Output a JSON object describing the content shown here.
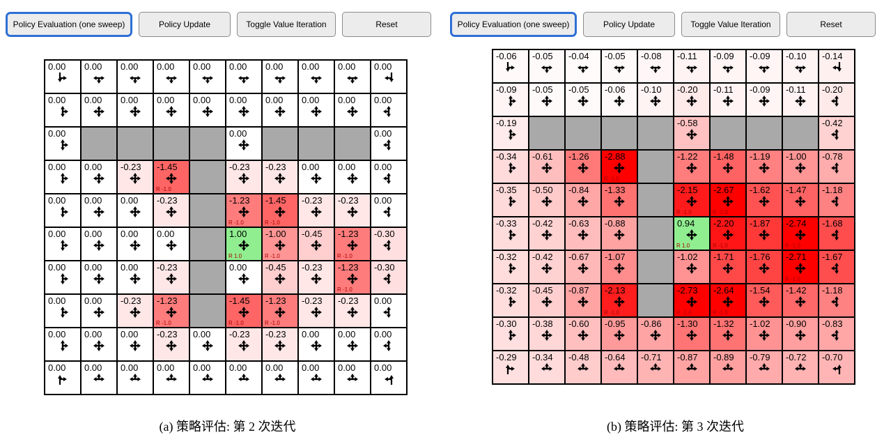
{
  "colors": {
    "accent_blue": "#2e6fd6",
    "button_bg": "#ececec",
    "button_border": "#8a8a8a",
    "cell_green": "#90ee90",
    "obstacle_gray": "#a9a9a9",
    "cell_max_red": "#ff0000",
    "reward_label_red": "#aa0000",
    "grid_border": "#000000"
  },
  "icons": {
    "policy-arrows-icon": "black directional arrows in each cell showing allowed policy moves (up/down/left/right; edge and corner cells omit blocked directions; corner cells drawn as elbow arrows)"
  },
  "panels": [
    {
      "id": "a",
      "toolbar": {
        "buttons": [
          {
            "label": "Policy Evaluation (one sweep)",
            "active": true
          },
          {
            "label": "Policy Update",
            "active": false
          },
          {
            "label": "Toggle Value Iteration",
            "active": false
          },
          {
            "label": "Reset",
            "active": false
          }
        ]
      },
      "caption": "(a) 策略评估: 第 2 次迭代",
      "grid": {
        "rows": 10,
        "cols": 10,
        "cells": [
          [
            {
              "v": "0.00"
            },
            {
              "v": "0.00"
            },
            {
              "v": "0.00"
            },
            {
              "v": "0.00"
            },
            {
              "v": "0.00"
            },
            {
              "v": "0.00"
            },
            {
              "v": "0.00"
            },
            {
              "v": "0.00"
            },
            {
              "v": "0.00"
            },
            {
              "v": "0.00"
            }
          ],
          [
            {
              "v": "0.00"
            },
            {
              "v": "0.00"
            },
            {
              "v": "0.00"
            },
            {
              "v": "0.00"
            },
            {
              "v": "0.00"
            },
            {
              "v": "0.00"
            },
            {
              "v": "0.00"
            },
            {
              "v": "0.00"
            },
            {
              "v": "0.00"
            },
            {
              "v": "0.00"
            }
          ],
          [
            {
              "v": "0.00"
            },
            null,
            null,
            null,
            null,
            {
              "v": "0.00"
            },
            null,
            null,
            null,
            {
              "v": "0.00"
            }
          ],
          [
            {
              "v": "0.00"
            },
            {
              "v": "0.00"
            },
            {
              "v": "-0.23"
            },
            {
              "v": "-1.45",
              "r": "R -1.0"
            },
            null,
            {
              "v": "-0.23"
            },
            {
              "v": "-0.23"
            },
            {
              "v": "0.00"
            },
            {
              "v": "0.00"
            },
            {
              "v": "0.00"
            }
          ],
          [
            {
              "v": "0.00"
            },
            {
              "v": "0.00"
            },
            {
              "v": "0.00"
            },
            {
              "v": "-0.23"
            },
            null,
            {
              "v": "-1.23",
              "r": "R -1.0"
            },
            {
              "v": "-1.45",
              "r": "R -1.0"
            },
            {
              "v": "-0.23"
            },
            {
              "v": "-0.23"
            },
            {
              "v": "0.00"
            }
          ],
          [
            {
              "v": "0.00"
            },
            {
              "v": "0.00"
            },
            {
              "v": "0.00"
            },
            {
              "v": "0.00"
            },
            null,
            {
              "v": "1.00",
              "r": "R 1.0"
            },
            {
              "v": "-1.00",
              "r": "R -1.0"
            },
            {
              "v": "-0.45"
            },
            {
              "v": "-1.23",
              "r": "R -1.0"
            },
            {
              "v": "-0.30"
            }
          ],
          [
            {
              "v": "0.00"
            },
            {
              "v": "0.00"
            },
            {
              "v": "0.00"
            },
            {
              "v": "-0.23"
            },
            null,
            {
              "v": "0.00"
            },
            {
              "v": "-0.45"
            },
            {
              "v": "-0.23"
            },
            {
              "v": "-1.23",
              "r": "R -1.0"
            },
            {
              "v": "-0.30"
            }
          ],
          [
            {
              "v": "0.00"
            },
            {
              "v": "0.00"
            },
            {
              "v": "-0.23"
            },
            {
              "v": "-1.23",
              "r": "R -1.0"
            },
            null,
            {
              "v": "-1.45",
              "r": "R -1.0"
            },
            {
              "v": "-1.23",
              "r": "R -1.0"
            },
            {
              "v": "-0.23"
            },
            {
              "v": "-0.23"
            },
            {
              "v": "0.00"
            }
          ],
          [
            {
              "v": "0.00"
            },
            {
              "v": "0.00"
            },
            {
              "v": "0.00"
            },
            {
              "v": "-0.23"
            },
            {
              "v": "0.00"
            },
            {
              "v": "-0.23"
            },
            {
              "v": "-0.23"
            },
            {
              "v": "0.00"
            },
            {
              "v": "0.00"
            },
            {
              "v": "0.00"
            }
          ],
          [
            {
              "v": "0.00"
            },
            {
              "v": "0.00"
            },
            {
              "v": "0.00"
            },
            {
              "v": "0.00"
            },
            {
              "v": "0.00"
            },
            {
              "v": "0.00"
            },
            {
              "v": "0.00"
            },
            {
              "v": "0.00"
            },
            {
              "v": "0.00"
            },
            {
              "v": "0.00"
            }
          ]
        ]
      }
    },
    {
      "id": "b",
      "toolbar": {
        "buttons": [
          {
            "label": "Policy Evaluation (one sweep)",
            "active": true
          },
          {
            "label": "Policy Update",
            "active": false
          },
          {
            "label": "Toggle Value Iteration",
            "active": false
          },
          {
            "label": "Reset",
            "active": false
          }
        ]
      },
      "caption": "(b) 策略评估: 第 3 次迭代",
      "grid": {
        "rows": 10,
        "cols": 10,
        "cells": [
          [
            {
              "v": "-0.06"
            },
            {
              "v": "-0.05"
            },
            {
              "v": "-0.04"
            },
            {
              "v": "-0.05"
            },
            {
              "v": "-0.08"
            },
            {
              "v": "-0.11"
            },
            {
              "v": "-0.09"
            },
            {
              "v": "-0.09"
            },
            {
              "v": "-0.10"
            },
            {
              "v": "-0.14"
            }
          ],
          [
            {
              "v": "-0.09"
            },
            {
              "v": "-0.05"
            },
            {
              "v": "-0.05"
            },
            {
              "v": "-0.06"
            },
            {
              "v": "-0.10"
            },
            {
              "v": "-0.20"
            },
            {
              "v": "-0.11"
            },
            {
              "v": "-0.09"
            },
            {
              "v": "-0.11"
            },
            {
              "v": "-0.20"
            }
          ],
          [
            {
              "v": "-0.19"
            },
            null,
            null,
            null,
            null,
            {
              "v": "-0.58"
            },
            null,
            null,
            null,
            {
              "v": "-0.42"
            }
          ],
          [
            {
              "v": "-0.34"
            },
            {
              "v": "-0.61"
            },
            {
              "v": "-1.26"
            },
            {
              "v": "-2.88",
              "r": "R -1.0"
            },
            null,
            {
              "v": "-1.22"
            },
            {
              "v": "-1.48"
            },
            {
              "v": "-1.19"
            },
            {
              "v": "-1.00"
            },
            {
              "v": "-0.78"
            }
          ],
          [
            {
              "v": "-0.35"
            },
            {
              "v": "-0.50"
            },
            {
              "v": "-0.84"
            },
            {
              "v": "-1.33"
            },
            null,
            {
              "v": "-2.15",
              "r": "R -1.0"
            },
            {
              "v": "-2.67",
              "r": "R -1.0"
            },
            {
              "v": "-1.62"
            },
            {
              "v": "-1.47"
            },
            {
              "v": "-1.18"
            }
          ],
          [
            {
              "v": "-0.33"
            },
            {
              "v": "-0.42"
            },
            {
              "v": "-0.63"
            },
            {
              "v": "-0.88"
            },
            null,
            {
              "v": "0.94",
              "r": "R 1.0"
            },
            {
              "v": "-2.20",
              "r": "R -1.0"
            },
            {
              "v": "-1.87"
            },
            {
              "v": "-2.74",
              "r": "R -1.0"
            },
            {
              "v": "-1.68"
            }
          ],
          [
            {
              "v": "-0.32"
            },
            {
              "v": "-0.42"
            },
            {
              "v": "-0.67"
            },
            {
              "v": "-1.07"
            },
            null,
            {
              "v": "-1.02"
            },
            {
              "v": "-1.71"
            },
            {
              "v": "-1.76"
            },
            {
              "v": "-2.71",
              "r": "R -1.0"
            },
            {
              "v": "-1.67"
            }
          ],
          [
            {
              "v": "-0.32"
            },
            {
              "v": "-0.45"
            },
            {
              "v": "-0.87"
            },
            {
              "v": "-2.13",
              "r": "R -1.0"
            },
            null,
            {
              "v": "-2.73",
              "r": "R -1.0"
            },
            {
              "v": "-2.64",
              "r": "R -1.0"
            },
            {
              "v": "-1.54"
            },
            {
              "v": "-1.42"
            },
            {
              "v": "-1.18"
            }
          ],
          [
            {
              "v": "-0.30"
            },
            {
              "v": "-0.38"
            },
            {
              "v": "-0.60"
            },
            {
              "v": "-0.95"
            },
            {
              "v": "-0.86"
            },
            {
              "v": "-1.30"
            },
            {
              "v": "-1.32"
            },
            {
              "v": "-1.02"
            },
            {
              "v": "-0.90"
            },
            {
              "v": "-0.83"
            }
          ],
          [
            {
              "v": "-0.29"
            },
            {
              "v": "-0.34"
            },
            {
              "v": "-0.48"
            },
            {
              "v": "-0.64"
            },
            {
              "v": "-0.71"
            },
            {
              "v": "-0.87"
            },
            {
              "v": "-0.89"
            },
            {
              "v": "-0.79"
            },
            {
              "v": "-0.72"
            },
            {
              "v": "-0.70"
            }
          ]
        ]
      }
    }
  ]
}
